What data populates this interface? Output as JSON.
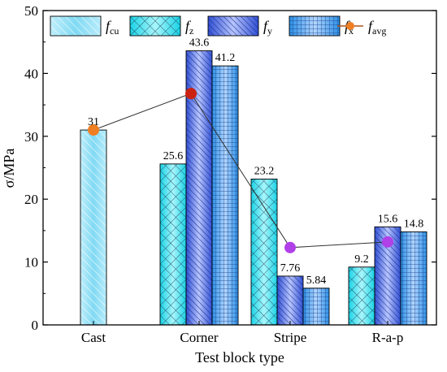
{
  "chart_data": {
    "type": "bar",
    "xlabel": "Test block type",
    "ylabel": "σ/MPa",
    "ylim": [
      0,
      50
    ],
    "yticks": [
      0,
      10,
      20,
      30,
      40,
      50
    ],
    "categories": [
      "Cast",
      "Corner",
      "Stripe",
      "R-a-p"
    ],
    "legend_position": "top",
    "series": [
      {
        "name": "f_cu",
        "name_main": "f",
        "name_sub": "cu",
        "values": [
          31,
          null,
          null,
          null
        ],
        "labels": [
          "31",
          "",
          "",
          ""
        ],
        "color": "#2fc4ea",
        "pattern": "diag-light"
      },
      {
        "name": "f_z",
        "name_main": "f",
        "name_sub": "z",
        "values": [
          null,
          25.6,
          23.2,
          9.2
        ],
        "labels": [
          "",
          "25.6",
          "23.2",
          "9.2"
        ],
        "color": "#22e0ea",
        "pattern": "crosshatch"
      },
      {
        "name": "f_y",
        "name_main": "f",
        "name_sub": "y",
        "values": [
          null,
          43.6,
          7.76,
          15.6
        ],
        "labels": [
          "",
          "43.6",
          "7.76",
          "15.6"
        ],
        "color": "#4a6ae8",
        "pattern": "diag-dense"
      },
      {
        "name": "f_x",
        "name_main": "f",
        "name_sub": "x",
        "values": [
          null,
          41.2,
          5.84,
          14.8
        ],
        "labels": [
          "",
          "41.2",
          "5.84",
          "14.8"
        ],
        "color": "#3aa8ee",
        "pattern": "grid"
      }
    ],
    "avg_line": {
      "name": "f_avg",
      "name_main": "f",
      "name_sub": "avg",
      "type": "line",
      "values": [
        31,
        36.8,
        12.3,
        13.2
      ],
      "marker_colors": [
        "#f07e22",
        "#cc2211",
        "#b040e8",
        "#b040e8"
      ],
      "line_color": "#333333"
    }
  }
}
